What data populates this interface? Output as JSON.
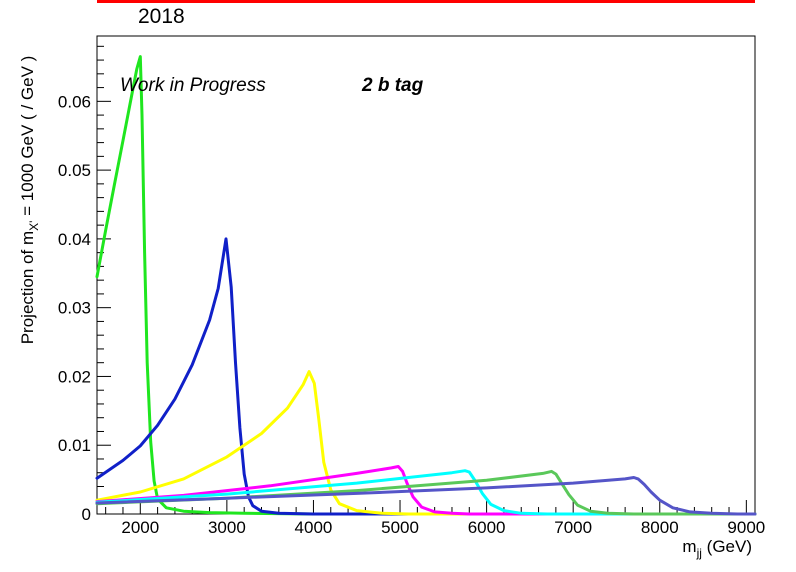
{
  "header": {
    "year": "2018",
    "bar_color": "#ff0000"
  },
  "chart_data": {
    "type": "line",
    "annotations": {
      "left": "Work in Progress",
      "right": "2 b tag"
    },
    "xlabel": {
      "base": "m",
      "sub": "jj",
      "rest": " (GeV)"
    },
    "ylabel": {
      "pre": "Projection of m",
      "sub": "X'",
      "post": " = 1000 GeV ( / GeV )"
    },
    "xlim": [
      1500,
      9100
    ],
    "ylim": [
      0,
      0.0695
    ],
    "x_ticks": [
      2000,
      3000,
      4000,
      5000,
      6000,
      7000,
      8000,
      9000
    ],
    "x_tick_labels": [
      "2000",
      "3000",
      "4000",
      "5000",
      "6000",
      "7000",
      "8000",
      "9000"
    ],
    "y_ticks": [
      0,
      0.01,
      0.02,
      0.03,
      0.04,
      0.05,
      0.06
    ],
    "y_tick_labels": [
      "0",
      "0.01",
      "0.02",
      "0.03",
      "0.04",
      "0.05",
      "0.06"
    ],
    "grid": false,
    "series": [
      {
        "color": "#1fe61f",
        "x": [
          1500,
          1600,
          1700,
          1800,
          1900,
          1960,
          2000,
          2020,
          2050,
          2080,
          2120,
          2160,
          2200,
          2300,
          2500,
          2800,
          3200,
          4000,
          6000,
          9100
        ],
        "y": [
          0.0345,
          0.0413,
          0.0478,
          0.0543,
          0.0608,
          0.0647,
          0.0665,
          0.058,
          0.038,
          0.022,
          0.0105,
          0.0048,
          0.0022,
          0.0009,
          0.0004,
          0.0002,
          0.0001,
          0.0,
          0.0,
          0.0
        ]
      },
      {
        "color": "#1020c8",
        "x": [
          1500,
          1800,
          2000,
          2200,
          2400,
          2600,
          2800,
          2900,
          2990,
          3050,
          3100,
          3150,
          3200,
          3250,
          3300,
          3400,
          3600,
          4000,
          9100
        ],
        "y": [
          0.0052,
          0.0078,
          0.0099,
          0.0129,
          0.0167,
          0.0217,
          0.0282,
          0.0328,
          0.04,
          0.033,
          0.022,
          0.0125,
          0.0058,
          0.0025,
          0.0012,
          0.0004,
          0.0001,
          0.0,
          0.0
        ]
      },
      {
        "color": "#ffff00",
        "x": [
          1500,
          2000,
          2500,
          3000,
          3400,
          3700,
          3880,
          3950,
          4010,
          4060,
          4120,
          4200,
          4300,
          4500,
          4800,
          5100,
          9100
        ],
        "y": [
          0.002,
          0.0032,
          0.0051,
          0.0083,
          0.0117,
          0.0154,
          0.0188,
          0.0207,
          0.019,
          0.014,
          0.0075,
          0.0035,
          0.0015,
          0.0005,
          0.0001,
          0.0,
          0.0
        ]
      },
      {
        "color": "#ff00ff",
        "x": [
          1500,
          2500,
          3500,
          4500,
          4900,
          4980,
          5030,
          5080,
          5150,
          5250,
          5400,
          5600,
          5800,
          9100
        ],
        "y": [
          0.0018,
          0.0027,
          0.0041,
          0.0059,
          0.0067,
          0.0069,
          0.0062,
          0.0045,
          0.0025,
          0.001,
          0.0003,
          0.0001,
          0.0,
          0.0
        ]
      },
      {
        "color": "#00ffff",
        "x": [
          1500,
          3000,
          4500,
          5600,
          5750,
          5800,
          5870,
          5950,
          6050,
          6200,
          6400,
          6700,
          9100
        ],
        "y": [
          0.0017,
          0.0029,
          0.0045,
          0.006,
          0.0063,
          0.0061,
          0.0048,
          0.003,
          0.0014,
          0.0005,
          0.0001,
          0.0,
          0.0
        ]
      },
      {
        "color": "#5ac85a",
        "x": [
          1500,
          3000,
          4500,
          6000,
          6650,
          6750,
          6800,
          6870,
          6950,
          7050,
          7200,
          7400,
          7700,
          9100
        ],
        "y": [
          0.0015,
          0.0023,
          0.0034,
          0.0049,
          0.0059,
          0.0062,
          0.0058,
          0.0044,
          0.0028,
          0.0013,
          0.0004,
          0.0001,
          0.0,
          0.0
        ]
      },
      {
        "color": "#5555c8",
        "x": [
          1500,
          3000,
          4500,
          6000,
          7000,
          7600,
          7700,
          7750,
          7820,
          7900,
          8000,
          8150,
          8350,
          8600,
          8900,
          9100
        ],
        "y": [
          0.0016,
          0.0023,
          0.003,
          0.0038,
          0.0045,
          0.0051,
          0.0053,
          0.0051,
          0.0043,
          0.0032,
          0.002,
          0.0009,
          0.0003,
          0.0001,
          0.0,
          0.0
        ]
      }
    ]
  }
}
